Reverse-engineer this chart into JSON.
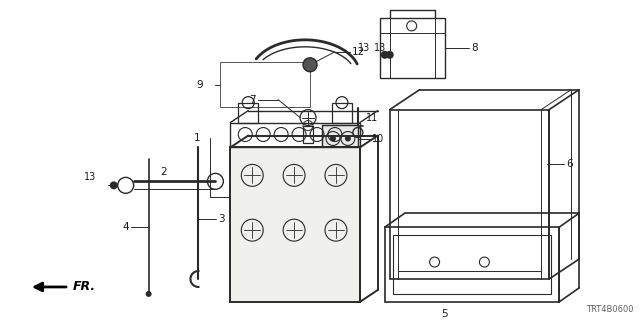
{
  "bg_color": "#ffffff",
  "line_color": "#2a2a2a",
  "label_color": "#1a1a1a",
  "fig_width": 6.4,
  "fig_height": 3.2,
  "dpi": 100,
  "watermark": "TRT4B0600",
  "direction_label": "FR."
}
